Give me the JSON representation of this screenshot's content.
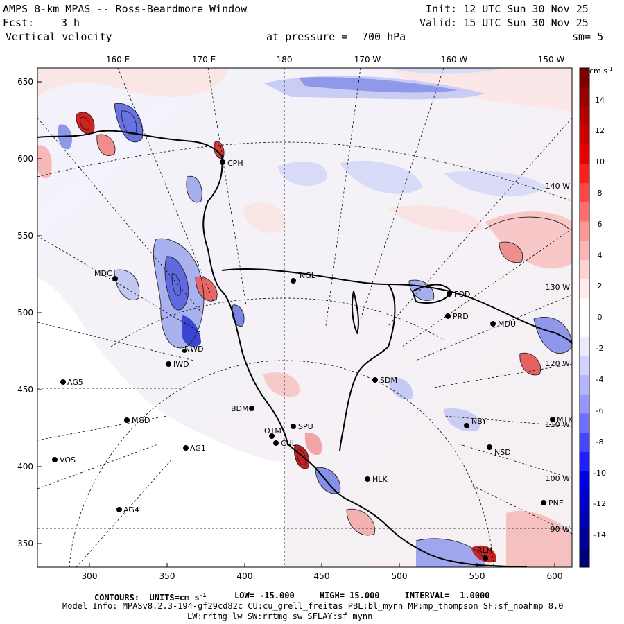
{
  "header": {
    "title": "AMPS 8-km MPAS -- Ross-Beardmore Window",
    "fcst_label": "Fcst:",
    "fcst_value": "3 h",
    "variable": "Vertical velocity",
    "init": "Init: 12 UTC Sun 30 Nov 25",
    "valid": "Valid: 15 UTC Sun 30 Nov 25",
    "pressure_label": "at pressure =",
    "pressure_value": "700 hPa",
    "smoothing": "sm= 5"
  },
  "axes": {
    "top_longitudes": [
      "160 E",
      "170 E",
      "180",
      "170 W",
      "160 W",
      "150 W"
    ],
    "left_y_ticks": [
      "650",
      "600",
      "550",
      "500",
      "450",
      "400",
      "350"
    ],
    "bottom_x_ticks": [
      "300",
      "350",
      "400",
      "450",
      "500",
      "550",
      "600"
    ],
    "right_longitudes": [
      "140 W",
      "130 W",
      "120 W",
      "110 W",
      "100 W",
      "90 W"
    ]
  },
  "stations": [
    {
      "name": "CPH"
    },
    {
      "name": "MDC"
    },
    {
      "name": "NGL"
    },
    {
      "name": "FOD"
    },
    {
      "name": "PRD"
    },
    {
      "name": "MDU"
    },
    {
      "name": "NWD"
    },
    {
      "name": "IWD"
    },
    {
      "name": "AG5"
    },
    {
      "name": "SDM"
    },
    {
      "name": "BDM"
    },
    {
      "name": "MGD"
    },
    {
      "name": "NBY"
    },
    {
      "name": "MTK"
    },
    {
      "name": "SPU"
    },
    {
      "name": "OTM"
    },
    {
      "name": "CUL"
    },
    {
      "name": "AG1"
    },
    {
      "name": "NSD"
    },
    {
      "name": "VOS"
    },
    {
      "name": "HLK"
    },
    {
      "name": "PNE"
    },
    {
      "name": "AG4"
    },
    {
      "name": "RLH"
    }
  ],
  "colorbar": {
    "units": "cm s",
    "units_exp": "-1",
    "labels": [
      "14",
      "12",
      "10",
      "8",
      "6",
      "4",
      "2",
      "0",
      "-2",
      "-4",
      "-6",
      "-8",
      "-10",
      "-12",
      "-14"
    ],
    "colors": [
      "#7d0000",
      "#960000",
      "#b40000",
      "#cd0000",
      "#e60000",
      "#ff1e1e",
      "#ff4646",
      "#ff6e6e",
      "#ff9696",
      "#ffb4b4",
      "#ffd2d2",
      "#ffebeb",
      "#ffffff",
      "#ffffff",
      "#ebebff",
      "#d2d2ff",
      "#b4b4ff",
      "#9696ff",
      "#6e6eff",
      "#4646ff",
      "#1e1eff",
      "#0000e6",
      "#0000cd",
      "#0000b4",
      "#000096",
      "#00007d"
    ]
  },
  "footer": {
    "contours": "CONTOURS:  UNITS=cm s",
    "contours_exp": "-1",
    "range": "LOW= -15.000     HIGH= 15.000     INTERVAL=  1.0000",
    "model_info": "Model Info: MPASv8.2.3-194-gf29cd82c CU:cu_grell_freitas PBL:bl_mynn MP:mp_thompson SF:sf_noahmp 8.0",
    "model_info_2": "LW:rrtmg_lw SW:rrtmg_sw SFLAY:sf_mynn"
  },
  "colors": {
    "pos_light": "#fde3e3",
    "pos_mid": "#f5a6a6",
    "pos_dark": "#c61a1a",
    "neg_light": "#e2e3fa",
    "neg_mid": "#9ea6ee",
    "neg_dark": "#1a28c8"
  }
}
